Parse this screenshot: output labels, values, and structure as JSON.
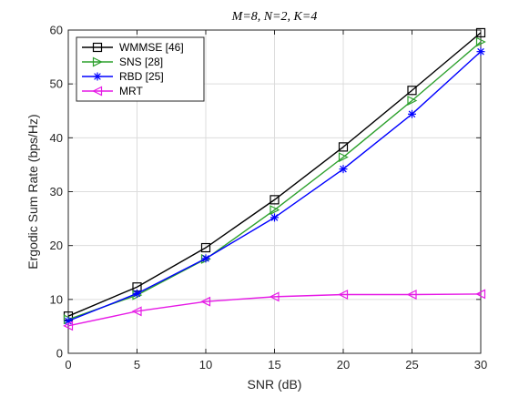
{
  "chart_data": {
    "type": "line",
    "title": "M=8, N=2, K=4",
    "xlabel": "SNR (dB)",
    "ylabel": "Ergodic Sum Rate (bps/Hz)",
    "xlim": [
      0,
      30
    ],
    "ylim": [
      0,
      60
    ],
    "xticks": [
      "0",
      "5",
      "10",
      "15",
      "20",
      "25",
      "30"
    ],
    "yticks": [
      "0",
      "10",
      "20",
      "30",
      "40",
      "50",
      "60"
    ],
    "grid": true,
    "legend_position": "top-left",
    "x": [
      0,
      5,
      10,
      15,
      20,
      25,
      30
    ],
    "series": [
      {
        "name": "WMMSE [46]",
        "color": "#000000",
        "marker": "square",
        "values": [
          6.9,
          12.3,
          19.6,
          28.5,
          38.3,
          48.8,
          59.5
        ]
      },
      {
        "name": "SNS [28]",
        "color": "#2ca02c",
        "marker": "triangle-right",
        "values": [
          6.3,
          10.8,
          17.5,
          26.6,
          36.4,
          46.9,
          57.8
        ]
      },
      {
        "name": "RBD [25]",
        "color": "#0000ff",
        "marker": "asterisk",
        "values": [
          6.0,
          11.1,
          17.6,
          25.2,
          34.2,
          44.4,
          56.0
        ]
      },
      {
        "name": "MRT",
        "color": "#e619e6",
        "marker": "triangle-left",
        "values": [
          5.1,
          7.8,
          9.6,
          10.5,
          10.9,
          10.9,
          11.0
        ]
      }
    ]
  }
}
